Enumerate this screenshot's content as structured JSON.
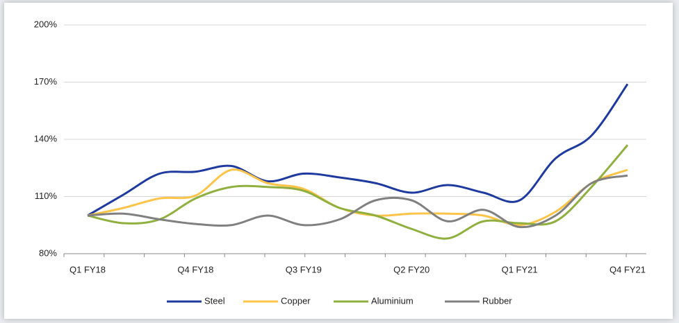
{
  "chart_data": {
    "type": "line",
    "categories": [
      "Q1 FY18",
      null,
      null,
      "Q4 FY18",
      null,
      null,
      "Q3 FY19",
      null,
      null,
      "Q2 FY20",
      null,
      null,
      "Q1 FY21",
      null,
      null,
      "Q4 FY21"
    ],
    "series": [
      {
        "name": "Steel",
        "color": "#1f3a9e",
        "values": [
          100,
          111,
          122,
          123,
          126,
          118,
          122,
          120,
          117,
          112,
          116,
          112,
          108,
          130,
          142,
          169
        ]
      },
      {
        "name": "Copper",
        "color": "#fdc448",
        "values": [
          100,
          104,
          109,
          110.5,
          124,
          117,
          114,
          104,
          100,
          101,
          101,
          100,
          95,
          102,
          117,
          124
        ]
      },
      {
        "name": "Aluminium",
        "color": "#8fb03e",
        "values": [
          100,
          96,
          98,
          109,
          115,
          115,
          113,
          104,
          100,
          93,
          88,
          97,
          96,
          97,
          115,
          137
        ]
      },
      {
        "name": "Rubber",
        "color": "#808080",
        "values": [
          100,
          101,
          98,
          95.6,
          95,
          100,
          95,
          98,
          108,
          108,
          97,
          103,
          94,
          100,
          117,
          121
        ]
      }
    ],
    "ylim": [
      80,
      200
    ],
    "yticks": [
      {
        "value": 80,
        "label": "80%"
      },
      {
        "value": 110,
        "label": "110%"
      },
      {
        "value": 140,
        "label": "140%"
      },
      {
        "value": 170,
        "label": "170%"
      },
      {
        "value": 200,
        "label": "200%"
      }
    ],
    "grid": true,
    "legend": "bottom"
  }
}
